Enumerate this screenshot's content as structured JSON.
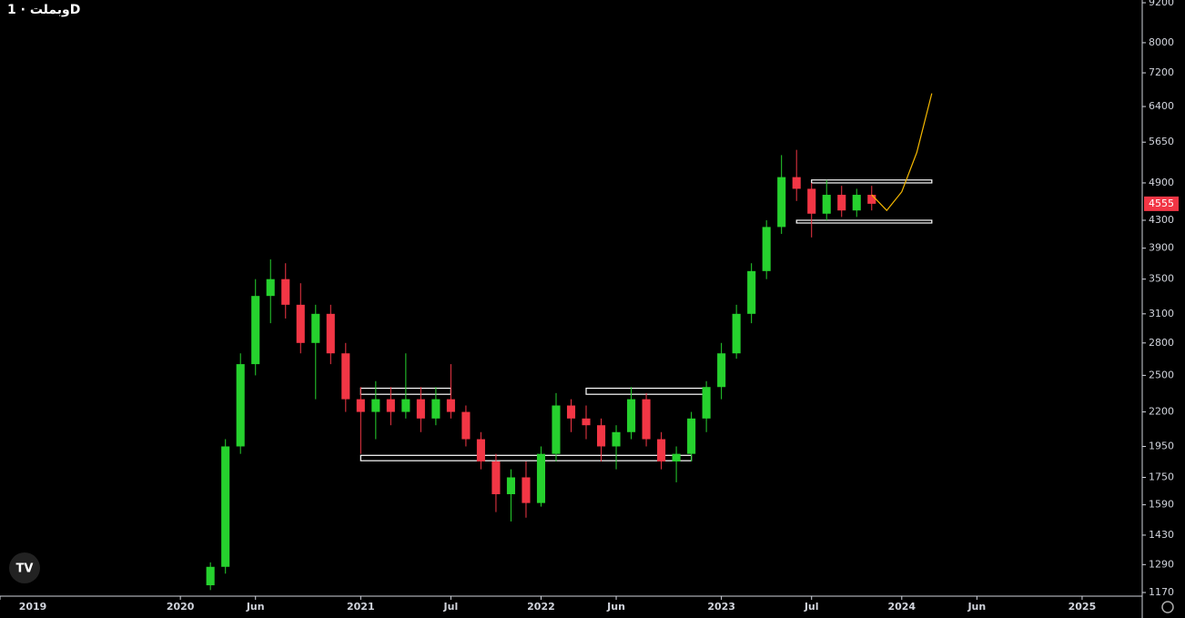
{
  "chart_data": {
    "type": "candlestick",
    "title": "وبملت · 1D",
    "log_scale": true,
    "up_color": "#26d12e",
    "down_color": "#f23645",
    "x": [
      "2020-03",
      "2020-04",
      "2020-05",
      "2020-06",
      "2020-07",
      "2020-08",
      "2020-09",
      "2020-10",
      "2020-11",
      "2020-12",
      "2021-01",
      "2021-02",
      "2021-03",
      "2021-04",
      "2021-05",
      "2021-06",
      "2021-07",
      "2021-08",
      "2021-09",
      "2021-10",
      "2021-11",
      "2021-12",
      "2022-01",
      "2022-02",
      "2022-03",
      "2022-04",
      "2022-05",
      "2022-06",
      "2022-07",
      "2022-08",
      "2022-09",
      "2022-10",
      "2022-11",
      "2022-12",
      "2023-01",
      "2023-02",
      "2023-03",
      "2023-04",
      "2023-05",
      "2023-06",
      "2023-07",
      "2023-08",
      "2023-09",
      "2023-10",
      "2023-11"
    ],
    "open": [
      1200,
      1280,
      1950,
      2600,
      3300,
      3500,
      3200,
      2800,
      3100,
      2700,
      2300,
      2200,
      2300,
      2200,
      2300,
      2150,
      2300,
      2200,
      2000,
      1850,
      1650,
      1750,
      1600,
      1900,
      2250,
      2150,
      2100,
      1950,
      2050,
      2300,
      2000,
      1850,
      1900,
      2150,
      2400,
      2700,
      3100,
      3600,
      4200,
      5000,
      4800,
      4400,
      4700,
      4450,
      4700
    ],
    "high": [
      1300,
      2000,
      2700,
      3500,
      3750,
      3700,
      3450,
      3200,
      3200,
      2800,
      2400,
      2450,
      2400,
      2700,
      2400,
      2400,
      2600,
      2250,
      2050,
      1900,
      1800,
      1850,
      1950,
      2350,
      2300,
      2250,
      2150,
      2100,
      2400,
      2350,
      2050,
      1950,
      2200,
      2450,
      2800,
      3200,
      3700,
      4300,
      5400,
      5500,
      4900,
      4950,
      4850,
      4800,
      4850
    ],
    "low": [
      1180,
      1250,
      1900,
      2500,
      3000,
      3050,
      2700,
      2300,
      2600,
      2200,
      1900,
      2000,
      2100,
      2150,
      2050,
      2100,
      2150,
      1950,
      1800,
      1550,
      1500,
      1520,
      1580,
      1850,
      2050,
      2000,
      1850,
      1800,
      2000,
      1950,
      1800,
      1720,
      1850,
      2050,
      2300,
      2650,
      3000,
      3500,
      4100,
      4600,
      4050,
      4300,
      4350,
      4350,
      4450
    ],
    "close": [
      1280,
      1950,
      2600,
      3300,
      3500,
      3200,
      2800,
      3100,
      2700,
      2300,
      2200,
      2300,
      2200,
      2300,
      2150,
      2300,
      2200,
      2000,
      1850,
      1650,
      1750,
      1600,
      1900,
      2250,
      2150,
      2100,
      1950,
      2050,
      2300,
      2000,
      1850,
      1900,
      2150,
      2400,
      2700,
      3100,
      3600,
      4200,
      5000,
      4800,
      4400,
      4700,
      4450,
      4700,
      4555
    ],
    "last_price": 4555,
    "boxes": [
      {
        "x": [
          "2021-01",
          "2021-07"
        ],
        "y": [
          2340,
          2390
        ]
      },
      {
        "x": [
          "2021-01",
          "2022-11"
        ],
        "y": [
          1855,
          1890
        ]
      },
      {
        "x": [
          "2022-04",
          "2022-12"
        ],
        "y": [
          2340,
          2390
        ]
      },
      {
        "x": [
          "2023-07",
          "2024-03"
        ],
        "y": [
          4900,
          4950
        ]
      },
      {
        "x": [
          "2023-06",
          "2024-03"
        ],
        "y": [
          4270,
          4300
        ]
      }
    ],
    "projection": {
      "color": "#f5b800",
      "x": [
        "2023-11",
        "2023-12",
        "2024-01",
        "2024-02",
        "2024-03"
      ],
      "values": [
        4700,
        4450,
        4750,
        5450,
        6700
      ]
    },
    "xlim": [
      "2019-01",
      "2025-05"
    ],
    "xticks": [
      {
        "value": "2019-01",
        "label": "2019"
      },
      {
        "value": "2020-01",
        "label": "2020"
      },
      {
        "value": "2020-06",
        "label": "Jun"
      },
      {
        "value": "2021-01",
        "label": "2021"
      },
      {
        "value": "2021-07",
        "label": "Jul"
      },
      {
        "value": "2022-01",
        "label": "2022"
      },
      {
        "value": "2022-06",
        "label": "Jun"
      },
      {
        "value": "2023-01",
        "label": "2023"
      },
      {
        "value": "2023-07",
        "label": "Jul"
      },
      {
        "value": "2024-01",
        "label": "2024"
      },
      {
        "value": "2024-06",
        "label": "Jun"
      },
      {
        "value": "2025-01",
        "label": "2025"
      }
    ],
    "ylim": [
      1170,
      9200
    ],
    "yticks": [
      1170,
      1290,
      1430,
      1590,
      1750,
      1950,
      2200,
      2500,
      2800,
      3100,
      3500,
      3900,
      4300,
      4900,
      5650,
      6400,
      7200,
      8000,
      9200
    ]
  }
}
